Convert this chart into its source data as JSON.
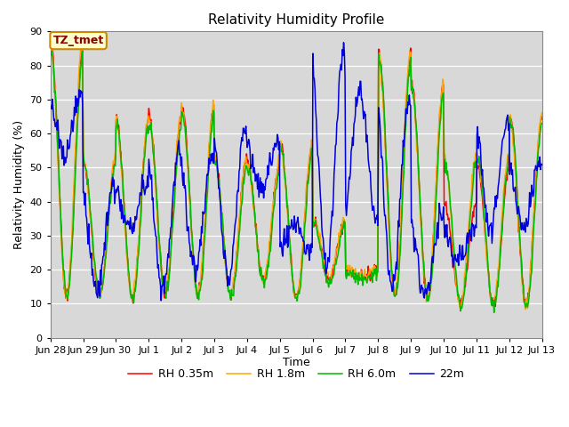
{
  "title": "Relativity Humidity Profile",
  "xlabel": "Time",
  "ylabel": "Relativity Humidity (%)",
  "ylim": [
    0,
    90
  ],
  "yticks": [
    0,
    10,
    20,
    30,
    40,
    50,
    60,
    70,
    80,
    90
  ],
  "xtick_labels": [
    "Jun 28",
    "Jun 29",
    "Jun 30",
    "Jul 1",
    "Jul 2",
    "Jul 3",
    "Jul 4",
    "Jul 5",
    "Jul 6",
    "Jul 7",
    "Jul 8",
    "Jul 9",
    "Jul 10",
    "Jul 11",
    "Jul 12",
    "Jul 13"
  ],
  "legend_labels": [
    "RH 0.35m",
    "RH 1.8m",
    "RH 6.0m",
    "22m"
  ],
  "colors": [
    "#ff0000",
    "#ffa500",
    "#00bb00",
    "#0000dd"
  ],
  "annotation_text": "TZ_tmet",
  "annotation_bg": "#ffffcc",
  "annotation_border": "#cc8800",
  "annotation_text_color": "#880000",
  "plot_bg_color": "#d8d8d8",
  "linewidth": 1.1,
  "n_days": 15,
  "pts_per_day": 48,
  "day_peaks_rh035": [
    86,
    52,
    64,
    65,
    68,
    53,
    51,
    57,
    35,
    20,
    84,
    75,
    40,
    51,
    65
  ],
  "day_troughs_rh035": [
    12,
    13,
    11,
    13,
    13,
    13,
    17,
    12,
    17,
    18,
    13,
    12,
    11,
    10,
    10
  ],
  "day_peaks_rh18": [
    88,
    53,
    64,
    65,
    68,
    53,
    51,
    57,
    35,
    20,
    84,
    75,
    54,
    54,
    65
  ],
  "day_troughs_rh18": [
    12,
    13,
    12,
    14,
    13,
    13,
    17,
    12,
    18,
    18,
    13,
    12,
    10,
    10,
    10
  ],
  "day_peaks_rh60": [
    84,
    52,
    63,
    62,
    66,
    51,
    49,
    56,
    34,
    19,
    82,
    73,
    52,
    53,
    65
  ],
  "day_troughs_rh60": [
    12,
    13,
    11,
    13,
    12,
    12,
    16,
    11,
    16,
    17,
    12,
    11,
    9,
    9,
    9
  ],
  "day_peaks_rh22m": [
    71,
    45,
    45,
    54,
    53,
    61,
    56,
    25,
    83,
    35,
    70,
    36,
    32,
    63,
    52
  ],
  "day_troughs_rh22m": [
    54,
    14,
    32,
    14,
    20,
    17,
    45,
    34,
    21,
    73,
    14,
    13,
    23,
    32,
    32
  ],
  "figsize": [
    6.4,
    4.8
  ],
  "dpi": 100
}
